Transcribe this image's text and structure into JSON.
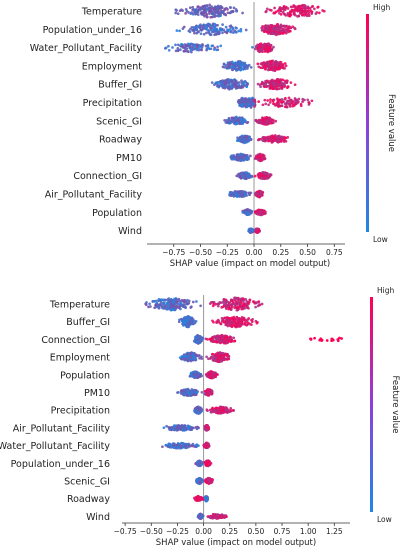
{
  "colors": {
    "low": "#1E88E5",
    "high": "#FF0052",
    "zero_line": "#999999",
    "axis": "#333333"
  },
  "chart_data": [
    {
      "type": "scatter",
      "subtype": "shap-beeswarm",
      "xlabel": "SHAP value (impact on model output)",
      "xlim": [
        -1.0,
        0.85
      ],
      "xticks": [
        -0.75,
        -0.5,
        -0.25,
        0.0,
        0.25,
        0.5,
        0.75
      ],
      "xtick_labels": [
        "−0.75",
        "−0.50",
        "−0.25",
        "0.00",
        "0.25",
        "0.50",
        "0.75"
      ],
      "colorbar": {
        "high_label": "High",
        "low_label": "Low",
        "title": "Feature value"
      },
      "features": [
        {
          "name": "Temperature",
          "left": [
            -0.8,
            -0.05
          ],
          "right": [
            0.05,
            0.78
          ],
          "density": 1.0,
          "cmode": "split"
        },
        {
          "name": "Population_under_16",
          "left": [
            -0.78,
            0.0
          ],
          "right": [
            0.0,
            0.42
          ],
          "density": 0.9,
          "cmode": "posHigh"
        },
        {
          "name": "Water_Pollutant_Facility",
          "left": [
            -0.98,
            -0.2
          ],
          "right": [
            -0.05,
            0.25
          ],
          "density": 0.7,
          "cmode": "posHigh",
          "core": 0.1
        },
        {
          "name": "Employment",
          "left": [
            -0.32,
            0.0
          ],
          "right": [
            0.0,
            0.36
          ],
          "density": 0.8,
          "cmode": "posHigh"
        },
        {
          "name": "Buffer_GI",
          "left": [
            -0.42,
            0.0
          ],
          "right": [
            0.0,
            0.42
          ],
          "density": 0.85,
          "cmode": "posHigh"
        },
        {
          "name": "Precipitation",
          "left": [
            -0.18,
            0.0
          ],
          "right": [
            0.0,
            0.62
          ],
          "density": 0.8,
          "cmode": "posHigh",
          "core": -0.05
        },
        {
          "name": "Scenic_GI",
          "left": [
            -0.32,
            0.0
          ],
          "right": [
            0.0,
            0.22
          ],
          "density": 0.6,
          "cmode": "posHigh"
        },
        {
          "name": "Roadway",
          "left": [
            -0.18,
            0.0
          ],
          "right": [
            0.0,
            0.38
          ],
          "density": 0.6,
          "cmode": "posHigh"
        },
        {
          "name": "PM10",
          "left": [
            -0.25,
            0.0
          ],
          "right": [
            0.0,
            0.12
          ],
          "density": 0.55,
          "cmode": "posHigh"
        },
        {
          "name": "Connection_GI",
          "left": [
            -0.18,
            0.0
          ],
          "right": [
            0.0,
            0.18
          ],
          "density": 0.55,
          "cmode": "posHigh"
        },
        {
          "name": "Air_Pollutant_Facility",
          "left": [
            -0.28,
            0.0
          ],
          "right": [
            0.0,
            0.1
          ],
          "density": 0.5,
          "cmode": "posHigh"
        },
        {
          "name": "Population",
          "left": [
            -0.12,
            0.0
          ],
          "right": [
            0.0,
            0.12
          ],
          "density": 0.45,
          "cmode": "posHigh"
        },
        {
          "name": "Wind",
          "left": [
            -0.06,
            0.0
          ],
          "right": [
            0.0,
            0.06
          ],
          "density": 0.35,
          "cmode": "posHigh"
        }
      ]
    },
    {
      "type": "scatter",
      "subtype": "shap-beeswarm",
      "xlabel": "SHAP value (impact on model output)",
      "xlim": [
        -0.78,
        1.4
      ],
      "xticks": [
        -0.75,
        -0.5,
        -0.25,
        0.0,
        0.25,
        0.5,
        0.75,
        1.0,
        1.25
      ],
      "xtick_labels": [
        "−0.75",
        "−0.50",
        "−0.25",
        "0.00",
        "0.25",
        "0.50",
        "0.75",
        "1.00",
        "1.25"
      ],
      "colorbar": {
        "high_label": "High",
        "low_label": "Low",
        "title": "Feature value"
      },
      "features": [
        {
          "name": "Temperature",
          "left": [
            -0.62,
            0.0
          ],
          "right": [
            0.0,
            0.62
          ],
          "density": 1.0,
          "cmode": "posHigh"
        },
        {
          "name": "Buffer_GI",
          "left": [
            -0.25,
            -0.05
          ],
          "right": [
            0.05,
            0.55
          ],
          "density": 0.85,
          "cmode": "split"
        },
        {
          "name": "Connection_GI",
          "left": [
            -0.1,
            0.0
          ],
          "right": [
            0.0,
            0.35
          ],
          "density": 0.7,
          "cmode": "posHigh",
          "outlier": [
            1.0,
            1.32
          ]
        },
        {
          "name": "Employment",
          "left": [
            -0.25,
            0.0
          ],
          "right": [
            0.0,
            0.3
          ],
          "density": 0.75,
          "cmode": "posHigh"
        },
        {
          "name": "Population",
          "left": [
            -0.15,
            0.0
          ],
          "right": [
            0.0,
            0.15
          ],
          "density": 0.55,
          "cmode": "posHigh"
        },
        {
          "name": "PM10",
          "left": [
            -0.28,
            0.0
          ],
          "right": [
            0.0,
            0.1
          ],
          "density": 0.55,
          "cmode": "posHigh"
        },
        {
          "name": "Precipitation",
          "left": [
            -0.1,
            0.0
          ],
          "right": [
            0.0,
            0.32
          ],
          "density": 0.55,
          "cmode": "posHigh"
        },
        {
          "name": "Air_Pollutant_Facility",
          "left": [
            -0.45,
            0.0
          ],
          "right": [
            0.0,
            0.06
          ],
          "density": 0.45,
          "cmode": "posHigh"
        },
        {
          "name": "Water_Pollutant_Facility",
          "left": [
            -0.45,
            0.0
          ],
          "right": [
            0.0,
            0.06
          ],
          "density": 0.45,
          "cmode": "posHigh"
        },
        {
          "name": "Population_under_16",
          "left": [
            -0.08,
            0.0
          ],
          "right": [
            0.0,
            0.08
          ],
          "density": 0.45,
          "cmode": "posHigh"
        },
        {
          "name": "Scenic_GI",
          "left": [
            -0.08,
            0.0
          ],
          "right": [
            0.0,
            0.1
          ],
          "density": 0.45,
          "cmode": "posHigh"
        },
        {
          "name": "Roadway",
          "left": [
            -0.1,
            0.0
          ],
          "right": [
            0.0,
            0.05
          ],
          "density": 0.4,
          "cmode": "negHigh"
        },
        {
          "name": "Wind",
          "left": [
            -0.06,
            0.0
          ],
          "right": [
            0.0,
            0.25
          ],
          "density": 0.4,
          "cmode": "posHigh"
        }
      ]
    }
  ]
}
